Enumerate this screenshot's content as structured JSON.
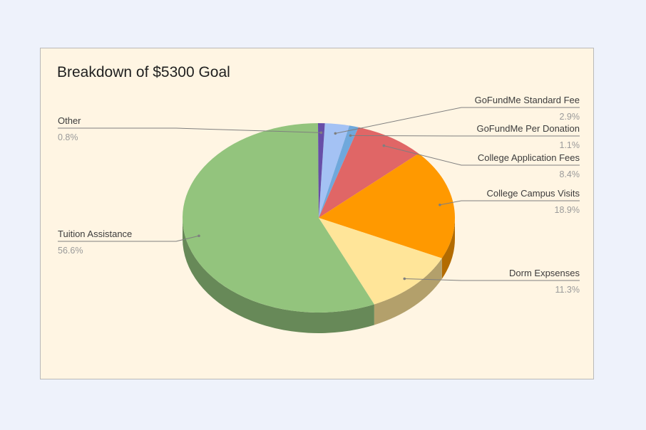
{
  "chart_data": {
    "type": "pie",
    "title": "Breakdown of $5300 Goal",
    "three_d": true,
    "slices": [
      {
        "label": "GoFundMe Standard Fee",
        "value": 2.9,
        "pct_label": "2.9%",
        "color": "#a4c2f4"
      },
      {
        "label": "GoFundMe Per Donation",
        "value": 1.1,
        "pct_label": "1.1%",
        "color": "#6fa8dc"
      },
      {
        "label": "College Application Fees",
        "value": 8.4,
        "pct_label": "8.4%",
        "color": "#e06666"
      },
      {
        "label": "College Campus Visits",
        "value": 18.9,
        "pct_label": "18.9%",
        "color": "#ff9900"
      },
      {
        "label": "Dorm Expsenses",
        "value": 11.3,
        "pct_label": "11.3%",
        "color": "#ffe599"
      },
      {
        "label": "Tuition Assistance",
        "value": 56.6,
        "pct_label": "56.6%",
        "color": "#93c47d"
      },
      {
        "label": "Other",
        "value": 0.8,
        "pct_label": "0.8%",
        "color": "#674ea7"
      }
    ]
  }
}
